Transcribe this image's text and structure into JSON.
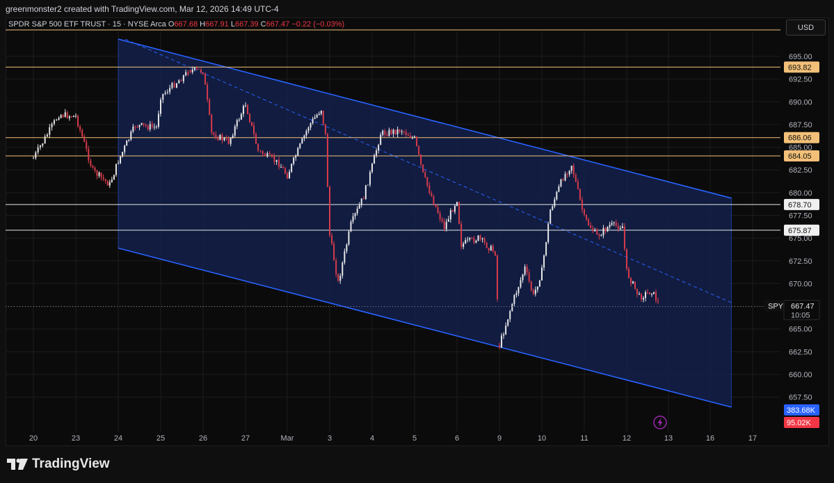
{
  "credit": "greenmonster2 created with TradingView.com, Mar 12, 2026 14:49 UTC-4",
  "legend": {
    "title": "SPDR S&P 500 ETF TRUST · 15 · NYSE Arca",
    "o_label": "O",
    "o_value": "667.68",
    "h_label": "H",
    "h_value": "667.91",
    "l_label": "L",
    "l_value": "667.39",
    "c_label": "C",
    "c_value": "667.47",
    "change": "−0.22 (−0.03%)"
  },
  "currency": "USD",
  "brand": "TradingView",
  "icons": {
    "brand_logo": "tradingview-logo-icon",
    "bolt": "lightning-bolt-icon"
  },
  "colors": {
    "up": "#e8e8e8",
    "down": "#d83b4b",
    "channel": "#2962ff",
    "channel_fill": "#13204a",
    "level_orange": "#f2c078",
    "level_white": "#e8e8e8",
    "volume_blue": "#2962ff",
    "volume_red": "#f23645"
  },
  "chart_data": {
    "type": "candlestick",
    "symbol": "SPY",
    "interval": "15",
    "ylim": [
      655.0,
      697.0
    ],
    "y_ticks": [
      "695.00",
      "692.50",
      "690.00",
      "687.50",
      "685.00",
      "682.50",
      "680.00",
      "677.50",
      "675.00",
      "672.50",
      "670.00",
      "667.50",
      "665.00",
      "662.50",
      "660.00",
      "657.50"
    ],
    "x_ticks": [
      "20",
      "23",
      "24",
      "25",
      "26",
      "27",
      "Mar",
      "3",
      "4",
      "5",
      "6",
      "9",
      "10",
      "11",
      "12",
      "13",
      "16",
      "17"
    ],
    "horizontal_levels": [
      {
        "value": 693.82,
        "label": "693.82",
        "style": "orange"
      },
      {
        "value": 686.06,
        "label": "686.06",
        "style": "orange"
      },
      {
        "value": 684.05,
        "label": "684.05",
        "style": "orange"
      },
      {
        "value": 678.7,
        "label": "678.70",
        "style": "white"
      },
      {
        "value": 675.87,
        "label": "675.87",
        "style": "white"
      },
      {
        "value": 698.1,
        "label": "",
        "style": "orange"
      }
    ],
    "last_price": {
      "symbol": "SPY",
      "value": "667.47",
      "countdown": "10:05"
    },
    "volume_labels": [
      {
        "label": "383.68K",
        "style": "blue"
      },
      {
        "label": "95.02K",
        "style": "red"
      }
    ],
    "channel": {
      "upper": [
        {
          "x": "24",
          "y": 696.9
        },
        {
          "x": "16.5",
          "y": 679.4
        }
      ],
      "lower": [
        {
          "x": "24",
          "y": 673.9
        },
        {
          "x": "16.5",
          "y": 656.4
        }
      ],
      "mid_dashed": true
    },
    "price_path": [
      {
        "x": "20",
        "y": 683.8
      },
      {
        "x": "20.6",
        "y": 688.6
      },
      {
        "x": "23",
        "y": 688.4
      },
      {
        "x": "23.4",
        "y": 682.4
      },
      {
        "x": "23.8",
        "y": 680.9
      },
      {
        "x": "24",
        "y": 683.5
      },
      {
        "x": "24.4",
        "y": 687.4
      },
      {
        "x": "24.9",
        "y": 687.2
      },
      {
        "x": "25",
        "y": 690.6
      },
      {
        "x": "25.7",
        "y": 693.5
      },
      {
        "x": "26",
        "y": 693.4
      },
      {
        "x": "26.2",
        "y": 686.5
      },
      {
        "x": "26.6",
        "y": 685.6
      },
      {
        "x": "27",
        "y": 689.8
      },
      {
        "x": "27.3",
        "y": 684.6
      },
      {
        "x": "27.8",
        "y": 683.2
      },
      {
        "x": "Mar",
        "y": 681.9
      },
      {
        "x": "Mar.5",
        "y": 687.3
      },
      {
        "x": "Mar.8",
        "y": 689.2
      },
      {
        "x": "Mar.9",
        "y": 686.3
      },
      {
        "x": "3",
        "y": 675.3
      },
      {
        "x": "3.2",
        "y": 670.1
      },
      {
        "x": "3.5",
        "y": 676.5
      },
      {
        "x": "3.8",
        "y": 679.6
      },
      {
        "x": "4",
        "y": 682.9
      },
      {
        "x": "4.2",
        "y": 686.5
      },
      {
        "x": "4.7",
        "y": 686.9
      },
      {
        "x": "5",
        "y": 685.9
      },
      {
        "x": "5.2",
        "y": 682.0
      },
      {
        "x": "5.5",
        "y": 678.4
      },
      {
        "x": "5.7",
        "y": 676.2
      },
      {
        "x": "6",
        "y": 679.3
      },
      {
        "x": "6.1",
        "y": 674.3
      },
      {
        "x": "6.5",
        "y": 675.0
      },
      {
        "x": "6.9",
        "y": 673.4
      },
      {
        "x": "9",
        "y": 663.2
      },
      {
        "x": "9.3",
        "y": 667.8
      },
      {
        "x": "9.6",
        "y": 671.7
      },
      {
        "x": "9.8",
        "y": 668.6
      },
      {
        "x": "10",
        "y": 671.4
      },
      {
        "x": "10.2",
        "y": 678.1
      },
      {
        "x": "10.5",
        "y": 681.7
      },
      {
        "x": "10.7",
        "y": 683.1
      },
      {
        "x": "10.9",
        "y": 679.1
      },
      {
        "x": "11",
        "y": 677.2
      },
      {
        "x": "11.3",
        "y": 675.2
      },
      {
        "x": "11.6",
        "y": 676.4
      },
      {
        "x": "11.9",
        "y": 676.3
      },
      {
        "x": "12",
        "y": 671.3
      },
      {
        "x": "12.3",
        "y": 668.5
      },
      {
        "x": "12.6",
        "y": 669.2
      },
      {
        "x": "12.8",
        "y": 667.47
      }
    ]
  }
}
